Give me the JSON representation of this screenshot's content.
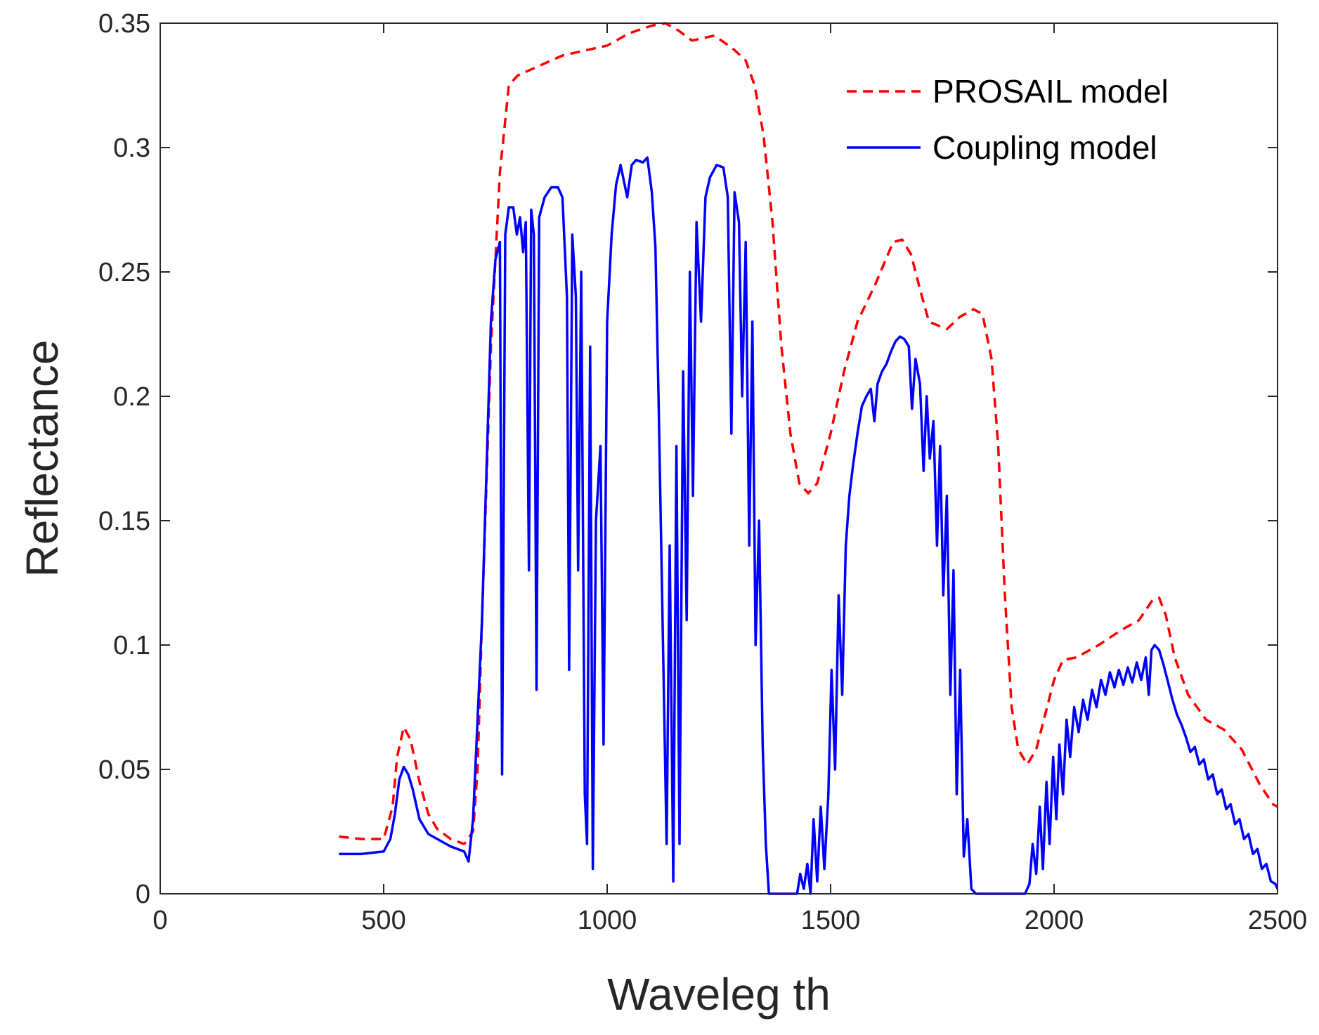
{
  "chart_data": {
    "type": "line",
    "title": "",
    "xlabel": "Waveleg th",
    "ylabel": "Reflectance",
    "xlim": [
      0,
      2500
    ],
    "ylim": [
      0,
      0.35
    ],
    "xticks": [
      0,
      500,
      1000,
      1500,
      2000,
      2500
    ],
    "xtick_labels": [
      "0",
      "500",
      "1000",
      "1500",
      "2000",
      "2500"
    ],
    "yticks": [
      0,
      0.05,
      0.1,
      0.15,
      0.2,
      0.25,
      0.3,
      0.35
    ],
    "ytick_labels": [
      "0",
      "0.05",
      "0.1",
      "0.15",
      "0.2",
      "0.25",
      "0.3",
      "0.35"
    ],
    "grid": false,
    "legend": {
      "location": "top-right"
    },
    "series": [
      {
        "name": "PROSAIL model",
        "color": "#ff0000",
        "style": "dashed",
        "points": [
          [
            400,
            0.023
          ],
          [
            450,
            0.022
          ],
          [
            500,
            0.022
          ],
          [
            520,
            0.035
          ],
          [
            530,
            0.055
          ],
          [
            545,
            0.067
          ],
          [
            560,
            0.062
          ],
          [
            580,
            0.045
          ],
          [
            600,
            0.032
          ],
          [
            620,
            0.026
          ],
          [
            650,
            0.022
          ],
          [
            680,
            0.02
          ],
          [
            700,
            0.025
          ],
          [
            710,
            0.05
          ],
          [
            720,
            0.11
          ],
          [
            740,
            0.22
          ],
          [
            760,
            0.29
          ],
          [
            780,
            0.325
          ],
          [
            800,
            0.329
          ],
          [
            850,
            0.333
          ],
          [
            900,
            0.337
          ],
          [
            950,
            0.339
          ],
          [
            1000,
            0.341
          ],
          [
            1050,
            0.346
          ],
          [
            1100,
            0.349
          ],
          [
            1130,
            0.35
          ],
          [
            1160,
            0.347
          ],
          [
            1190,
            0.343
          ],
          [
            1240,
            0.345
          ],
          [
            1280,
            0.34
          ],
          [
            1310,
            0.335
          ],
          [
            1330,
            0.325
          ],
          [
            1350,
            0.305
          ],
          [
            1370,
            0.27
          ],
          [
            1390,
            0.22
          ],
          [
            1410,
            0.185
          ],
          [
            1430,
            0.165
          ],
          [
            1450,
            0.161
          ],
          [
            1470,
            0.165
          ],
          [
            1500,
            0.185
          ],
          [
            1530,
            0.21
          ],
          [
            1560,
            0.23
          ],
          [
            1600,
            0.245
          ],
          [
            1640,
            0.262
          ],
          [
            1660,
            0.263
          ],
          [
            1680,
            0.257
          ],
          [
            1700,
            0.243
          ],
          [
            1720,
            0.23
          ],
          [
            1760,
            0.227
          ],
          [
            1790,
            0.232
          ],
          [
            1820,
            0.235
          ],
          [
            1840,
            0.233
          ],
          [
            1860,
            0.215
          ],
          [
            1875,
            0.18
          ],
          [
            1890,
            0.12
          ],
          [
            1905,
            0.075
          ],
          [
            1920,
            0.058
          ],
          [
            1940,
            0.052
          ],
          [
            1960,
            0.058
          ],
          [
            1980,
            0.072
          ],
          [
            2000,
            0.086
          ],
          [
            2020,
            0.094
          ],
          [
            2050,
            0.095
          ],
          [
            2100,
            0.1
          ],
          [
            2150,
            0.106
          ],
          [
            2190,
            0.11
          ],
          [
            2220,
            0.118
          ],
          [
            2235,
            0.119
          ],
          [
            2250,
            0.112
          ],
          [
            2270,
            0.095
          ],
          [
            2300,
            0.08
          ],
          [
            2340,
            0.07
          ],
          [
            2380,
            0.066
          ],
          [
            2420,
            0.058
          ],
          [
            2460,
            0.044
          ],
          [
            2490,
            0.036
          ],
          [
            2500,
            0.035
          ]
        ]
      },
      {
        "name": "Coupling model",
        "color": "#0000ff",
        "style": "solid",
        "points": [
          [
            400,
            0.016
          ],
          [
            450,
            0.016
          ],
          [
            500,
            0.017
          ],
          [
            515,
            0.022
          ],
          [
            525,
            0.032
          ],
          [
            535,
            0.046
          ],
          [
            545,
            0.051
          ],
          [
            555,
            0.048
          ],
          [
            565,
            0.042
          ],
          [
            580,
            0.03
          ],
          [
            600,
            0.024
          ],
          [
            620,
            0.022
          ],
          [
            650,
            0.019
          ],
          [
            680,
            0.017
          ],
          [
            690,
            0.013
          ],
          [
            700,
            0.03
          ],
          [
            710,
            0.07
          ],
          [
            720,
            0.11
          ],
          [
            730,
            0.17
          ],
          [
            740,
            0.23
          ],
          [
            750,
            0.255
          ],
          [
            760,
            0.262
          ],
          [
            765,
            0.048
          ],
          [
            772,
            0.265
          ],
          [
            780,
            0.276
          ],
          [
            790,
            0.276
          ],
          [
            798,
            0.265
          ],
          [
            805,
            0.272
          ],
          [
            812,
            0.258
          ],
          [
            818,
            0.27
          ],
          [
            825,
            0.13
          ],
          [
            830,
            0.275
          ],
          [
            836,
            0.265
          ],
          [
            842,
            0.082
          ],
          [
            848,
            0.272
          ],
          [
            860,
            0.28
          ],
          [
            875,
            0.284
          ],
          [
            890,
            0.284
          ],
          [
            900,
            0.28
          ],
          [
            910,
            0.24
          ],
          [
            915,
            0.09
          ],
          [
            922,
            0.265
          ],
          [
            930,
            0.24
          ],
          [
            935,
            0.13
          ],
          [
            942,
            0.25
          ],
          [
            950,
            0.04
          ],
          [
            955,
            0.02
          ],
          [
            962,
            0.22
          ],
          [
            968,
            0.01
          ],
          [
            975,
            0.15
          ],
          [
            985,
            0.18
          ],
          [
            992,
            0.06
          ],
          [
            1000,
            0.23
          ],
          [
            1010,
            0.265
          ],
          [
            1020,
            0.285
          ],
          [
            1030,
            0.293
          ],
          [
            1045,
            0.28
          ],
          [
            1055,
            0.293
          ],
          [
            1065,
            0.295
          ],
          [
            1080,
            0.294
          ],
          [
            1090,
            0.296
          ],
          [
            1100,
            0.282
          ],
          [
            1108,
            0.26
          ],
          [
            1115,
            0.2
          ],
          [
            1125,
            0.1
          ],
          [
            1133,
            0.02
          ],
          [
            1140,
            0.14
          ],
          [
            1148,
            0.005
          ],
          [
            1155,
            0.18
          ],
          [
            1162,
            0.02
          ],
          [
            1170,
            0.21
          ],
          [
            1178,
            0.11
          ],
          [
            1185,
            0.25
          ],
          [
            1192,
            0.16
          ],
          [
            1200,
            0.27
          ],
          [
            1210,
            0.23
          ],
          [
            1220,
            0.28
          ],
          [
            1230,
            0.288
          ],
          [
            1245,
            0.293
          ],
          [
            1260,
            0.292
          ],
          [
            1270,
            0.28
          ],
          [
            1278,
            0.185
          ],
          [
            1285,
            0.282
          ],
          [
            1295,
            0.27
          ],
          [
            1302,
            0.2
          ],
          [
            1310,
            0.262
          ],
          [
            1318,
            0.14
          ],
          [
            1325,
            0.23
          ],
          [
            1332,
            0.1
          ],
          [
            1340,
            0.15
          ],
          [
            1348,
            0.06
          ],
          [
            1355,
            0.02
          ],
          [
            1362,
            0.0
          ],
          [
            1400,
            0.0
          ],
          [
            1425,
            0.0
          ],
          [
            1432,
            0.008
          ],
          [
            1440,
            0.002
          ],
          [
            1448,
            0.012
          ],
          [
            1455,
            0.0
          ],
          [
            1462,
            0.03
          ],
          [
            1470,
            0.005
          ],
          [
            1478,
            0.035
          ],
          [
            1486,
            0.01
          ],
          [
            1495,
            0.04
          ],
          [
            1502,
            0.09
          ],
          [
            1510,
            0.05
          ],
          [
            1518,
            0.12
          ],
          [
            1526,
            0.08
          ],
          [
            1534,
            0.14
          ],
          [
            1542,
            0.16
          ],
          [
            1550,
            0.172
          ],
          [
            1560,
            0.185
          ],
          [
            1570,
            0.196
          ],
          [
            1580,
            0.2
          ],
          [
            1590,
            0.203
          ],
          [
            1598,
            0.19
          ],
          [
            1605,
            0.205
          ],
          [
            1615,
            0.21
          ],
          [
            1625,
            0.213
          ],
          [
            1635,
            0.218
          ],
          [
            1645,
            0.222
          ],
          [
            1655,
            0.224
          ],
          [
            1665,
            0.223
          ],
          [
            1675,
            0.22
          ],
          [
            1682,
            0.195
          ],
          [
            1690,
            0.215
          ],
          [
            1700,
            0.205
          ],
          [
            1708,
            0.17
          ],
          [
            1715,
            0.2
          ],
          [
            1722,
            0.175
          ],
          [
            1730,
            0.19
          ],
          [
            1738,
            0.14
          ],
          [
            1745,
            0.18
          ],
          [
            1752,
            0.12
          ],
          [
            1760,
            0.16
          ],
          [
            1768,
            0.08
          ],
          [
            1775,
            0.13
          ],
          [
            1782,
            0.04
          ],
          [
            1790,
            0.09
          ],
          [
            1798,
            0.015
          ],
          [
            1806,
            0.03
          ],
          [
            1815,
            0.002
          ],
          [
            1825,
            0.0
          ],
          [
            1935,
            0.0
          ],
          [
            1945,
            0.004
          ],
          [
            1952,
            0.02
          ],
          [
            1960,
            0.008
          ],
          [
            1968,
            0.035
          ],
          [
            1975,
            0.01
          ],
          [
            1983,
            0.045
          ],
          [
            1990,
            0.02
          ],
          [
            1998,
            0.055
          ],
          [
            2005,
            0.03
          ],
          [
            2012,
            0.06
          ],
          [
            2020,
            0.04
          ],
          [
            2028,
            0.07
          ],
          [
            2036,
            0.055
          ],
          [
            2045,
            0.075
          ],
          [
            2055,
            0.065
          ],
          [
            2065,
            0.078
          ],
          [
            2075,
            0.07
          ],
          [
            2085,
            0.082
          ],
          [
            2095,
            0.075
          ],
          [
            2105,
            0.086
          ],
          [
            2115,
            0.08
          ],
          [
            2125,
            0.089
          ],
          [
            2135,
            0.083
          ],
          [
            2145,
            0.09
          ],
          [
            2155,
            0.084
          ],
          [
            2165,
            0.091
          ],
          [
            2175,
            0.085
          ],
          [
            2185,
            0.093
          ],
          [
            2195,
            0.086
          ],
          [
            2205,
            0.095
          ],
          [
            2212,
            0.08
          ],
          [
            2218,
            0.098
          ],
          [
            2225,
            0.1
          ],
          [
            2235,
            0.098
          ],
          [
            2245,
            0.092
          ],
          [
            2255,
            0.085
          ],
          [
            2265,
            0.078
          ],
          [
            2275,
            0.072
          ],
          [
            2285,
            0.068
          ],
          [
            2295,
            0.063
          ],
          [
            2305,
            0.057
          ],
          [
            2315,
            0.059
          ],
          [
            2325,
            0.052
          ],
          [
            2335,
            0.054
          ],
          [
            2345,
            0.046
          ],
          [
            2355,
            0.048
          ],
          [
            2365,
            0.04
          ],
          [
            2375,
            0.042
          ],
          [
            2385,
            0.034
          ],
          [
            2395,
            0.036
          ],
          [
            2405,
            0.028
          ],
          [
            2415,
            0.03
          ],
          [
            2425,
            0.022
          ],
          [
            2435,
            0.024
          ],
          [
            2445,
            0.016
          ],
          [
            2455,
            0.018
          ],
          [
            2465,
            0.01
          ],
          [
            2475,
            0.012
          ],
          [
            2485,
            0.005
          ],
          [
            2495,
            0.004
          ],
          [
            2500,
            0.002
          ]
        ]
      }
    ]
  }
}
